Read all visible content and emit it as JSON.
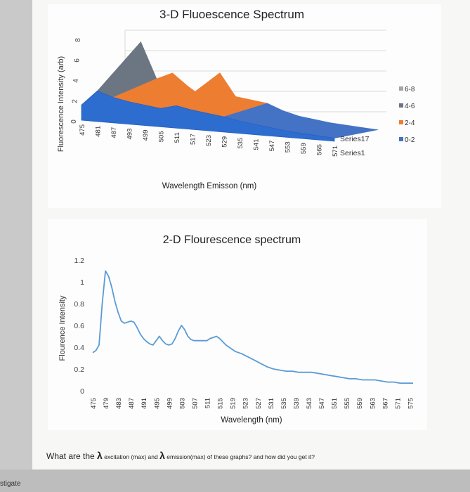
{
  "page_footer_label": "stigate",
  "question": {
    "prefix": "What are the ",
    "lambda1": "λ",
    "text1": " excitation (max) and ",
    "lambda2": "λ",
    "text2": " emission(max) of these graphs? and how did you get it?"
  },
  "chart_data": [
    {
      "type": "area3d",
      "title": "3-D Fluoescence Spectrum",
      "xlabel": "Wavelength Emisson (nm)",
      "ylabel": "Fluorescence Intensity (arb)",
      "ylim": [
        0,
        8
      ],
      "yticks": [
        "0",
        "2",
        "4",
        "6",
        "8"
      ],
      "categories": [
        "475",
        "481",
        "487",
        "493",
        "499",
        "505",
        "511",
        "517",
        "523",
        "529",
        "535",
        "541",
        "547",
        "553",
        "559",
        "565",
        "571"
      ],
      "series_axis_labels": [
        "Series17",
        "Series1"
      ],
      "legend": [
        {
          "label": "6-8",
          "color": "#a5a5a5"
        },
        {
          "label": "4-6",
          "color": "#6c7683"
        },
        {
          "label": "2-4",
          "color": "#ed7d31"
        },
        {
          "label": "0-2",
          "color": "#4472c4"
        }
      ],
      "series": [
        {
          "name": "Series1",
          "values": [
            1.5,
            3.0,
            2.5,
            2.2,
            2.0,
            1.8,
            2.2,
            1.9,
            1.7,
            1.5,
            1.2,
            1.0,
            0.8,
            0.6,
            0.5,
            0.4,
            0.3
          ]
        },
        {
          "name": "Series17",
          "values": [
            1.2,
            7.0,
            3.5,
            4.2,
            3.0,
            2.0,
            4.6,
            2.4,
            2.2,
            2.0,
            1.4,
            1.0,
            0.8,
            0.6,
            0.5,
            0.4,
            0.3
          ]
        }
      ]
    },
    {
      "type": "line",
      "title": "2-D Flourescence spectrum",
      "xlabel": "Wavelength (nm)",
      "ylabel": "Flourence Intensity",
      "ylim": [
        0,
        1.2
      ],
      "yticks": [
        "0",
        "0.2",
        "0.4",
        "0.6",
        "0.8",
        "1",
        "1.2"
      ],
      "categories": [
        "475",
        "479",
        "483",
        "487",
        "491",
        "495",
        "499",
        "503",
        "507",
        "511",
        "515",
        "519",
        "523",
        "527",
        "531",
        "535",
        "539",
        "543",
        "547",
        "551",
        "555",
        "559",
        "563",
        "567",
        "571",
        "575"
      ],
      "x": [
        475,
        476,
        477,
        478,
        479,
        480,
        481,
        482,
        483,
        484,
        485,
        486,
        487,
        488,
        489,
        490,
        491,
        492,
        493,
        494,
        495,
        496,
        497,
        498,
        499,
        500,
        501,
        502,
        503,
        504,
        505,
        506,
        507,
        508,
        509,
        510,
        511,
        512,
        513,
        514,
        515,
        516,
        517,
        518,
        519,
        520,
        522,
        524,
        526,
        528,
        530,
        532,
        534,
        536,
        538,
        540,
        542,
        544,
        546,
        548,
        550,
        552,
        554,
        556,
        558,
        560,
        562,
        564,
        566,
        568,
        570,
        572,
        574,
        576
      ],
      "values": [
        0.35,
        0.37,
        0.42,
        0.8,
        1.1,
        1.05,
        0.95,
        0.82,
        0.72,
        0.64,
        0.62,
        0.63,
        0.64,
        0.63,
        0.58,
        0.52,
        0.48,
        0.45,
        0.43,
        0.42,
        0.46,
        0.5,
        0.46,
        0.43,
        0.42,
        0.43,
        0.48,
        0.55,
        0.6,
        0.56,
        0.5,
        0.47,
        0.46,
        0.46,
        0.46,
        0.46,
        0.46,
        0.48,
        0.49,
        0.5,
        0.48,
        0.45,
        0.42,
        0.4,
        0.38,
        0.36,
        0.34,
        0.31,
        0.28,
        0.25,
        0.22,
        0.2,
        0.19,
        0.18,
        0.18,
        0.17,
        0.17,
        0.17,
        0.16,
        0.15,
        0.14,
        0.13,
        0.12,
        0.11,
        0.11,
        0.1,
        0.1,
        0.1,
        0.09,
        0.08,
        0.08,
        0.07,
        0.07,
        0.07
      ]
    }
  ]
}
